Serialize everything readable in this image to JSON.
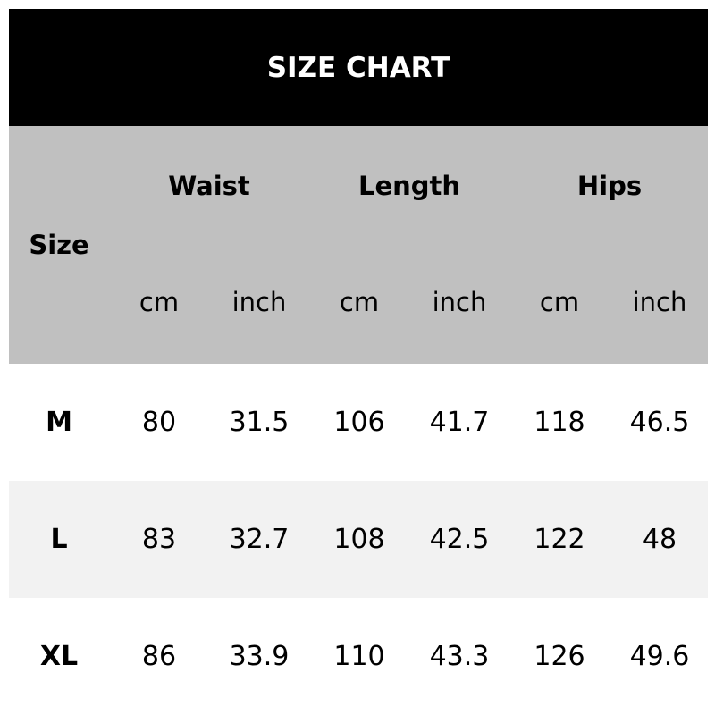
{
  "title": "SIZE CHART",
  "header": {
    "size_label": "Size",
    "groups": [
      "Waist",
      "Length",
      "Hips"
    ],
    "units": [
      "cm",
      "inch",
      "cm",
      "inch",
      "cm",
      "inch"
    ]
  },
  "rows": [
    {
      "size": "M",
      "values": [
        "80",
        "31.5",
        "106",
        "41.7",
        "118",
        "46.5"
      ]
    },
    {
      "size": "L",
      "values": [
        "83",
        "32.7",
        "108",
        "42.5",
        "122",
        "48"
      ]
    },
    {
      "size": "XL",
      "values": [
        "86",
        "33.9",
        "110",
        "43.3",
        "126",
        "49.6"
      ]
    }
  ],
  "colors": {
    "title_bg": "#000000",
    "header_bg": "#c0c0c0",
    "alt_row_bg": "#f2f2f2"
  }
}
